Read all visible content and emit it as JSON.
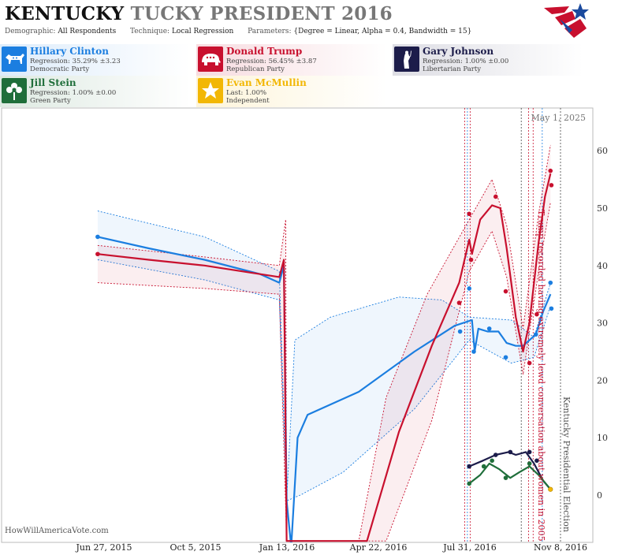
{
  "header": {
    "state": "KENTUCKY",
    "title_rest": "TUCKY PRESIDENT 2016",
    "demographic_label": "Demographic:",
    "demographic_value": "All Respondents",
    "technique_label": "Technique:",
    "technique_value": "Local Regression",
    "parameters_label": "Parameters:",
    "parameters_value": "{Degree = Linear, Alpha = 0.4, Bandwidth = 15}"
  },
  "candidates": [
    {
      "name": "Hillary Clinton",
      "line1": "Regression: 35.29% ±3.23",
      "line2": "Democratic Party",
      "color": "#1b7ee0",
      "icon": "donkey-icon"
    },
    {
      "name": "Donald Trump",
      "line1": "Regression: 56.45% ±3.87",
      "line2": "Republican Party",
      "color": "#c8102e",
      "icon": "elephant-icon"
    },
    {
      "name": "Gary Johnson",
      "line1": "Regression: 1.00% ±0.00",
      "line2": "Libertarian Party",
      "color": "#1c1c4a",
      "icon": "statue-of-liberty-icon"
    },
    {
      "name": "Jill Stein",
      "line1": "Regression: 1.00% ±0.00",
      "line2": "Green Party",
      "color": "#1f6e3a",
      "icon": "green-flower-icon"
    },
    {
      "name": "Evan McMullin",
      "line1": "Last: 1.00%",
      "line2": "Independent",
      "color": "#f2b705",
      "icon": "star-icon"
    }
  ],
  "chart_data": {
    "type": "line",
    "x_axis": {
      "ticks": [
        "Jun 27, 2015",
        "Oct 5, 2015",
        "Jan 13, 2016",
        "Apr 22, 2016",
        "Jul 31, 2016",
        "Nov 8, 2016"
      ]
    },
    "y_axis": {
      "range": [
        -8,
        65
      ],
      "ticks": [
        0,
        10,
        20,
        30,
        40,
        50,
        60
      ],
      "position": "right"
    },
    "grid": false,
    "annotations": [
      {
        "text": "May 1, 2025",
        "kind": "date-label"
      },
      {
        "text": "Trump recorded having extremely lewd conversation about women in 2005",
        "x": "2016-10-07"
      },
      {
        "text": "Kentucky Presidential Election",
        "x": "2016-11-08"
      }
    ],
    "event_lines": [
      "2016-07-26",
      "2016-07-29",
      "2016-08-01",
      "2016-09-26",
      "2016-10-04",
      "2016-10-09",
      "2016-10-19",
      "2016-11-08"
    ],
    "series": [
      {
        "name": "Hillary Clinton",
        "color": "#1b7ee0",
        "line": [
          [
            "2015-06-20",
            45
          ],
          [
            "2015-08-15",
            43
          ],
          [
            "2015-10-15",
            41
          ],
          [
            "2015-12-15",
            38.5
          ],
          [
            "2016-01-05",
            37
          ],
          [
            "2016-01-10",
            40
          ],
          [
            "2016-01-13",
            -1
          ],
          [
            "2016-01-18",
            -9
          ],
          [
            "2016-01-25",
            10
          ],
          [
            "2016-02-05",
            14
          ],
          [
            "2016-04-01",
            18
          ],
          [
            "2016-06-01",
            25
          ],
          [
            "2016-07-15",
            29.5
          ],
          [
            "2016-08-03",
            30.5
          ],
          [
            "2016-08-06",
            25
          ],
          [
            "2016-08-10",
            29
          ],
          [
            "2016-08-20",
            28.5
          ],
          [
            "2016-09-01",
            28.5
          ],
          [
            "2016-09-10",
            26.5
          ],
          [
            "2016-09-20",
            26
          ],
          [
            "2016-09-28",
            26
          ],
          [
            "2016-10-05",
            27
          ],
          [
            "2016-10-12",
            28
          ],
          [
            "2016-10-20",
            32
          ],
          [
            "2016-10-28",
            35
          ]
        ],
        "upper": [
          [
            "2015-06-20",
            49.5
          ],
          [
            "2015-10-15",
            45
          ],
          [
            "2016-01-05",
            39
          ],
          [
            "2016-01-13",
            -1
          ],
          [
            "2016-01-22",
            27
          ],
          [
            "2016-03-01",
            31
          ],
          [
            "2016-05-15",
            34.5
          ],
          [
            "2016-07-01",
            34
          ],
          [
            "2016-07-31",
            31
          ],
          [
            "2016-09-15",
            30.5
          ],
          [
            "2016-10-10",
            27.5
          ],
          [
            "2016-10-28",
            37
          ]
        ],
        "lower": [
          [
            "2015-06-20",
            41
          ],
          [
            "2015-10-15",
            37.5
          ],
          [
            "2016-01-05",
            34
          ],
          [
            "2016-01-13",
            -1
          ],
          [
            "2016-01-28",
            0
          ],
          [
            "2016-03-15",
            4
          ],
          [
            "2016-06-01",
            15
          ],
          [
            "2016-07-31",
            27
          ],
          [
            "2016-09-15",
            23
          ],
          [
            "2016-10-10",
            24
          ],
          [
            "2016-10-28",
            33
          ]
        ],
        "points": [
          [
            "2015-06-20",
            45
          ],
          [
            "2016-07-21",
            28.5
          ],
          [
            "2016-07-31",
            36
          ],
          [
            "2016-08-05",
            25
          ],
          [
            "2016-08-22",
            29
          ],
          [
            "2016-09-09",
            24
          ],
          [
            "2016-10-12",
            28
          ],
          [
            "2016-10-28",
            37
          ],
          [
            "2016-10-29",
            32.5
          ]
        ]
      },
      {
        "name": "Donald Trump",
        "color": "#c8102e",
        "line": [
          [
            "2015-06-20",
            42
          ],
          [
            "2015-08-15",
            41
          ],
          [
            "2015-10-15",
            40
          ],
          [
            "2015-12-15",
            38.5
          ],
          [
            "2016-01-05",
            38
          ],
          [
            "2016-01-10",
            41
          ],
          [
            "2016-01-13",
            -8
          ],
          [
            "2016-04-10",
            -8
          ],
          [
            "2016-05-15",
            11
          ],
          [
            "2016-06-20",
            26
          ],
          [
            "2016-07-20",
            37
          ],
          [
            "2016-07-31",
            44.5
          ],
          [
            "2016-08-03",
            42
          ],
          [
            "2016-08-12",
            48
          ],
          [
            "2016-08-25",
            50.5
          ],
          [
            "2016-09-03",
            50
          ],
          [
            "2016-09-10",
            43
          ],
          [
            "2016-09-20",
            31
          ],
          [
            "2016-09-28",
            25
          ],
          [
            "2016-10-05",
            30
          ],
          [
            "2016-10-15",
            44
          ],
          [
            "2016-10-22",
            52
          ],
          [
            "2016-10-28",
            56
          ]
        ],
        "upper": [
          [
            "2015-06-20",
            43.5
          ],
          [
            "2015-10-15",
            41.5
          ],
          [
            "2016-01-05",
            40
          ],
          [
            "2016-01-12",
            48
          ],
          [
            "2016-01-13",
            -8
          ],
          [
            "2016-04-01",
            -8
          ],
          [
            "2016-05-01",
            17
          ],
          [
            "2016-06-15",
            35
          ],
          [
            "2016-07-31",
            48
          ],
          [
            "2016-08-25",
            55
          ],
          [
            "2016-09-10",
            47
          ],
          [
            "2016-09-28",
            29
          ],
          [
            "2016-10-15",
            49
          ],
          [
            "2016-10-28",
            61
          ]
        ],
        "lower": [
          [
            "2015-06-20",
            37
          ],
          [
            "2015-10-15",
            36
          ],
          [
            "2016-01-05",
            35
          ],
          [
            "2016-01-13",
            -8
          ],
          [
            "2016-05-01",
            -8
          ],
          [
            "2016-06-20",
            13
          ],
          [
            "2016-07-31",
            39
          ],
          [
            "2016-08-25",
            46
          ],
          [
            "2016-09-10",
            38
          ],
          [
            "2016-09-28",
            21
          ],
          [
            "2016-10-15",
            39
          ],
          [
            "2016-10-28",
            51
          ]
        ],
        "points": [
          [
            "2015-06-20",
            42
          ],
          [
            "2016-07-20",
            33.5
          ],
          [
            "2016-07-31",
            49
          ],
          [
            "2016-08-02",
            41
          ],
          [
            "2016-08-29",
            52
          ],
          [
            "2016-09-09",
            35.5
          ],
          [
            "2016-10-05",
            23
          ],
          [
            "2016-10-13",
            31.5
          ],
          [
            "2016-10-28",
            56.5
          ],
          [
            "2016-10-29",
            54
          ]
        ]
      },
      {
        "name": "Gary Johnson",
        "color": "#1c1c4a",
        "line": [
          [
            "2016-07-31",
            5
          ],
          [
            "2016-08-15",
            6
          ],
          [
            "2016-08-29",
            7
          ],
          [
            "2016-09-12",
            7.5
          ],
          [
            "2016-09-20",
            7
          ],
          [
            "2016-10-01",
            7.5
          ],
          [
            "2016-10-10",
            5.5
          ],
          [
            "2016-10-20",
            2.5
          ],
          [
            "2016-10-28",
            1
          ]
        ],
        "points": [
          [
            "2016-07-31",
            5
          ],
          [
            "2016-08-29",
            7
          ],
          [
            "2016-09-14",
            7.5
          ],
          [
            "2016-10-05",
            7.5
          ],
          [
            "2016-10-13",
            6
          ],
          [
            "2016-10-28",
            1
          ]
        ]
      },
      {
        "name": "Jill Stein",
        "color": "#1f6e3a",
        "line": [
          [
            "2016-07-31",
            2
          ],
          [
            "2016-08-12",
            3.5
          ],
          [
            "2016-08-22",
            5.5
          ],
          [
            "2016-09-02",
            4.5
          ],
          [
            "2016-09-14",
            3
          ],
          [
            "2016-09-24",
            4
          ],
          [
            "2016-10-05",
            5
          ],
          [
            "2016-10-15",
            3.5
          ],
          [
            "2016-10-28",
            1
          ]
        ],
        "points": [
          [
            "2016-07-31",
            2
          ],
          [
            "2016-08-16",
            5
          ],
          [
            "2016-08-25",
            6
          ],
          [
            "2016-09-09",
            3
          ],
          [
            "2016-10-05",
            5.5
          ],
          [
            "2016-10-28",
            1
          ]
        ]
      },
      {
        "name": "Evan McMullin",
        "color": "#f2b705",
        "line": [],
        "points": [
          [
            "2016-10-28",
            1
          ]
        ]
      }
    ]
  },
  "footer": {
    "source": "HowWillAmericaVote.com"
  }
}
